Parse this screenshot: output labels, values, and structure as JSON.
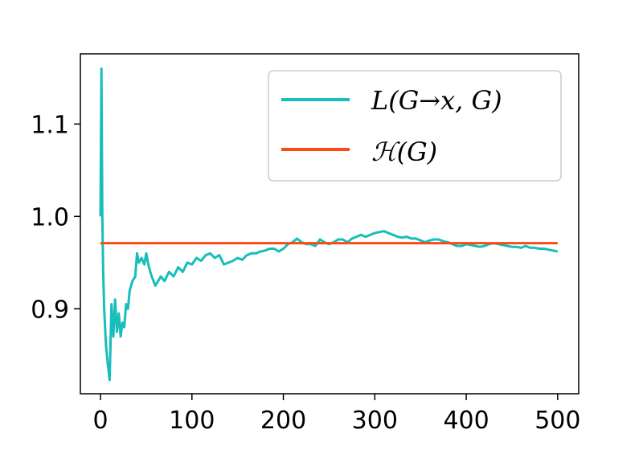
{
  "chart_data": {
    "type": "line",
    "title": "",
    "xlabel": "",
    "ylabel": "",
    "xlim": [
      -22,
      523
    ],
    "ylim": [
      0.808,
      1.176
    ],
    "xticks": [
      0,
      100,
      200,
      300,
      400,
      500
    ],
    "xtick_labels": [
      "0",
      "100",
      "200",
      "300",
      "400",
      "500"
    ],
    "yticks": [
      0.9,
      1.0,
      1.1
    ],
    "ytick_labels": [
      "0.9",
      "1.0",
      "1.1"
    ],
    "grid": false,
    "legend_position": "top-right",
    "series": [
      {
        "name": "L(G→x, G)",
        "color": "#17bebb",
        "x": [
          0,
          1,
          2,
          3,
          4,
          6,
          8,
          10,
          12,
          14,
          16,
          18,
          20,
          22,
          24,
          26,
          28,
          30,
          32,
          35,
          38,
          40,
          42,
          45,
          48,
          50,
          53,
          56,
          60,
          63,
          66,
          70,
          75,
          80,
          85,
          90,
          95,
          100,
          105,
          110,
          115,
          120,
          125,
          130,
          135,
          140,
          145,
          150,
          155,
          160,
          165,
          170,
          175,
          180,
          185,
          190,
          195,
          200,
          205,
          210,
          215,
          220,
          225,
          230,
          235,
          240,
          245,
          250,
          255,
          260,
          265,
          270,
          275,
          280,
          285,
          290,
          295,
          300,
          305,
          310,
          315,
          320,
          325,
          330,
          335,
          340,
          345,
          350,
          355,
          360,
          365,
          370,
          375,
          380,
          385,
          390,
          395,
          400,
          405,
          410,
          415,
          420,
          425,
          430,
          435,
          440,
          445,
          450,
          455,
          460,
          465,
          470,
          475,
          480,
          485,
          490,
          495,
          500
        ],
        "y": [
          1.0,
          1.16,
          1.0,
          0.94,
          0.9,
          0.86,
          0.84,
          0.823,
          0.905,
          0.87,
          0.91,
          0.875,
          0.895,
          0.87,
          0.885,
          0.88,
          0.905,
          0.9,
          0.92,
          0.93,
          0.935,
          0.96,
          0.95,
          0.955,
          0.948,
          0.96,
          0.945,
          0.935,
          0.925,
          0.93,
          0.935,
          0.93,
          0.94,
          0.935,
          0.945,
          0.94,
          0.95,
          0.948,
          0.955,
          0.952,
          0.958,
          0.96,
          0.955,
          0.958,
          0.948,
          0.95,
          0.952,
          0.955,
          0.953,
          0.958,
          0.96,
          0.96,
          0.962,
          0.963,
          0.965,
          0.965,
          0.962,
          0.965,
          0.97,
          0.972,
          0.976,
          0.972,
          0.97,
          0.97,
          0.968,
          0.975,
          0.972,
          0.97,
          0.972,
          0.975,
          0.975,
          0.972,
          0.976,
          0.978,
          0.98,
          0.978,
          0.98,
          0.982,
          0.983,
          0.984,
          0.982,
          0.98,
          0.978,
          0.977,
          0.978,
          0.976,
          0.976,
          0.974,
          0.972,
          0.974,
          0.975,
          0.975,
          0.973,
          0.972,
          0.97,
          0.968,
          0.968,
          0.97,
          0.969,
          0.968,
          0.967,
          0.968,
          0.97,
          0.971,
          0.97,
          0.969,
          0.968,
          0.967,
          0.967,
          0.966,
          0.968,
          0.966,
          0.966,
          0.965,
          0.965,
          0.964,
          0.963,
          0.962
        ]
      },
      {
        "name": "ℋ(G)",
        "color": "#fd4a14",
        "x": [
          0,
          500
        ],
        "y": [
          0.971,
          0.971
        ]
      }
    ]
  }
}
